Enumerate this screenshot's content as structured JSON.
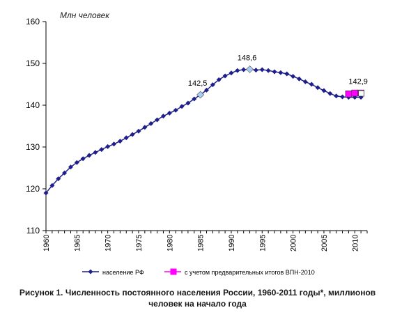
{
  "chart_data": {
    "type": "line",
    "ylabel": "Млн человек",
    "ylim": [
      110,
      160
    ],
    "yticks": [
      110,
      120,
      130,
      140,
      150,
      160
    ],
    "xlim": [
      1960,
      2012
    ],
    "xticks": [
      1960,
      1965,
      1970,
      1975,
      1980,
      1985,
      1990,
      1995,
      2000,
      2005,
      2010
    ],
    "grid": "horizontal-none",
    "legend": "bottom",
    "series": [
      {
        "name": "население РФ",
        "color": "#1f1f8c",
        "marker": "diamond",
        "x": [
          1960,
          1961,
          1962,
          1963,
          1964,
          1965,
          1966,
          1967,
          1968,
          1969,
          1970,
          1971,
          1972,
          1973,
          1974,
          1975,
          1976,
          1977,
          1978,
          1979,
          1980,
          1981,
          1982,
          1983,
          1984,
          1985,
          1986,
          1987,
          1988,
          1989,
          1990,
          1991,
          1992,
          1993,
          1994,
          1995,
          1996,
          1997,
          1998,
          1999,
          2000,
          2001,
          2002,
          2003,
          2004,
          2005,
          2006,
          2007,
          2008,
          2009,
          2010,
          2011
        ],
        "values": [
          119.0,
          120.8,
          122.4,
          123.8,
          125.2,
          126.3,
          127.2,
          128.0,
          128.7,
          129.4,
          130.1,
          130.7,
          131.4,
          132.2,
          133.0,
          133.8,
          134.7,
          135.6,
          136.5,
          137.4,
          138.1,
          138.8,
          139.7,
          140.5,
          141.5,
          142.5,
          143.6,
          144.9,
          146.1,
          147.0,
          147.7,
          148.3,
          148.5,
          148.6,
          148.4,
          148.5,
          148.3,
          148.0,
          147.8,
          147.5,
          146.9,
          146.3,
          145.6,
          145.0,
          144.2,
          143.5,
          142.8,
          142.2,
          142.0,
          141.9,
          141.9,
          141.9
        ]
      },
      {
        "name": "с учетом предварительных итогов ВПН-2010",
        "color": "#ff00ff",
        "marker": "square",
        "x": [
          2009,
          2010,
          2011
        ],
        "values": [
          142.7,
          142.9,
          142.9
        ]
      }
    ],
    "annotations": [
      {
        "text": "142,5",
        "x": 1985,
        "y": 142.5
      },
      {
        "text": "148,6",
        "x": 1993,
        "y": 148.6
      },
      {
        "text": "142,9",
        "x": 2011,
        "y": 142.9
      }
    ]
  },
  "caption": {
    "line1": "Рисунок 1. Численность постоянного населения России, 1960-2011 годы*, миллионов",
    "line2": "человек на начало года"
  }
}
